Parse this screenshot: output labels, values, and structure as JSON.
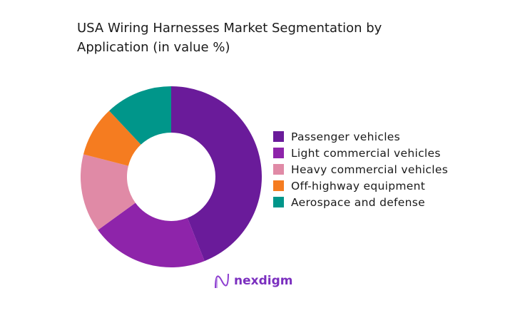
{
  "chart_data": {
    "type": "pie",
    "donut": true,
    "title": "USA Wiring Harnesses Market Segmentation by Application (in value %)",
    "categories": [
      "Passenger vehicles",
      "Light commercial vehicles",
      "Heavy commercial vehicles",
      "Off-highway equipment",
      "Aerospace and defense"
    ],
    "values": [
      44,
      21,
      14,
      9,
      12
    ],
    "colors": [
      "#6a1b9a",
      "#8e24aa",
      "#e08aa6",
      "#f57c20",
      "#00968a"
    ],
    "legend_position": "right"
  },
  "logo": {
    "text": "nexdigm",
    "color": "#7b2fbf"
  }
}
